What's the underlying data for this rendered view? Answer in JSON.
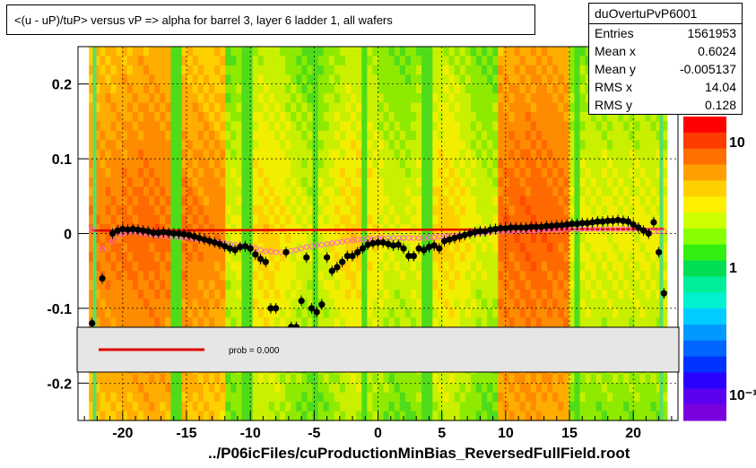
{
  "title": "<(u - uP)/tuP>  versus   vP => alpha for barrel 3, layer 6 ladder 1, all wafers",
  "stats": {
    "name": "duOvertuPvP6001",
    "rows": [
      {
        "k": "Entries",
        "v": "1561953"
      },
      {
        "k": "Mean x",
        "v": "0.6024"
      },
      {
        "k": "Mean y",
        "v": "-0.005137"
      },
      {
        "k": "RMS x",
        "v": "14.04"
      },
      {
        "k": "RMS y",
        "v": "0.128"
      }
    ]
  },
  "footer": "../P06icFiles/cuProductionMinBias_ReversedFullField.root",
  "legend_text": "prob = 0.000",
  "colors": {
    "fit_line": "#dd0000",
    "profile_points": "#000000",
    "open_markers": "#ff66cc"
  },
  "chart_data": {
    "type": "heatmap",
    "xlim": [
      -23.5,
      23.5
    ],
    "ylim": [
      -0.25,
      0.25
    ],
    "x_ticks": [
      -20,
      -15,
      -10,
      -5,
      0,
      5,
      10,
      15,
      20
    ],
    "x_tick_labels": [
      "-20",
      "-15",
      "-10",
      "-5",
      "0",
      "5",
      "10",
      "15",
      "20"
    ],
    "y_ticks": [
      -0.2,
      -0.1,
      0,
      0.1,
      0.2
    ],
    "y_tick_labels": [
      "-0.2",
      "-0.1",
      "0",
      "0.1",
      "0.2"
    ],
    "colorbar_scale": "log",
    "colorbar_tick_labels": [
      "10",
      "1",
      "10⁻¹"
    ],
    "grid": true,
    "profile": {
      "x": [
        -22.4,
        -21.6,
        -20.8,
        -20.4,
        -20.0,
        -19.6,
        -19.2,
        -18.8,
        -18.4,
        -18.0,
        -17.6,
        -17.2,
        -16.8,
        -16.4,
        -16.0,
        -15.6,
        -15.2,
        -14.8,
        -14.4,
        -14.0,
        -13.6,
        -13.2,
        -12.8,
        -12.4,
        -12.0,
        -11.6,
        -11.2,
        -10.8,
        -10.4,
        -10.0,
        -9.6,
        -9.2,
        -8.8,
        -8.4,
        -8.0,
        -7.6,
        -7.2,
        -6.8,
        -6.4,
        -6.0,
        -5.6,
        -5.2,
        -4.8,
        -4.4,
        -4.0,
        -3.6,
        -3.2,
        -2.8,
        -2.4,
        -2.0,
        -1.6,
        -1.2,
        -0.8,
        -0.4,
        0.0,
        0.4,
        0.8,
        1.2,
        1.6,
        2.0,
        2.4,
        2.8,
        3.2,
        3.6,
        4.0,
        4.4,
        4.8,
        5.2,
        5.6,
        6.0,
        6.4,
        6.8,
        7.2,
        7.6,
        8.0,
        8.4,
        8.8,
        9.2,
        9.6,
        10.0,
        10.4,
        10.8,
        11.2,
        11.6,
        12.0,
        12.4,
        12.8,
        13.2,
        13.6,
        14.0,
        14.4,
        14.8,
        15.2,
        15.6,
        16.0,
        16.4,
        16.8,
        17.2,
        17.6,
        18.0,
        18.4,
        18.8,
        19.2,
        19.6,
        20.0,
        20.4,
        20.8,
        21.2,
        21.6,
        22.0,
        22.4
      ],
      "y": [
        -0.12,
        -0.06,
        0.0,
        0.004,
        0.006,
        0.005,
        0.006,
        0.005,
        0.004,
        0.003,
        0.001,
        0.001,
        0.002,
        0.001,
        0.0,
        0.0,
        -0.001,
        -0.002,
        -0.004,
        -0.006,
        -0.008,
        -0.01,
        -0.012,
        -0.014,
        -0.017,
        -0.02,
        -0.022,
        -0.018,
        -0.017,
        -0.02,
        -0.028,
        -0.034,
        -0.038,
        -0.1,
        -0.1,
        -0.132,
        -0.025,
        -0.125,
        -0.125,
        -0.09,
        -0.032,
        -0.1,
        -0.105,
        -0.095,
        -0.032,
        -0.05,
        -0.045,
        -0.038,
        -0.03,
        -0.03,
        -0.025,
        -0.02,
        -0.015,
        -0.013,
        -0.012,
        -0.012,
        -0.014,
        -0.016,
        -0.015,
        -0.02,
        -0.03,
        -0.03,
        -0.02,
        -0.022,
        -0.018,
        -0.016,
        -0.02,
        -0.01,
        -0.008,
        -0.006,
        -0.004,
        -0.002,
        0.0,
        0.002,
        0.003,
        0.003,
        0.005,
        0.006,
        0.007,
        0.007,
        0.008,
        0.008,
        0.008,
        0.008,
        0.009,
        0.009,
        0.009,
        0.01,
        0.01,
        0.011,
        0.011,
        0.012,
        0.013,
        0.013,
        0.014,
        0.014,
        0.015,
        0.016,
        0.016,
        0.017,
        0.017,
        0.018,
        0.017,
        0.016,
        0.012,
        0.008,
        0.004,
        0.0,
        0.015,
        -0.025,
        -0.08
      ],
      "open_y": [
        0.006,
        -0.02,
        -0.01,
        -0.004,
        0.0,
        0.002,
        0.002,
        0.001,
        0.0,
        -0.001,
        -0.002,
        -0.003,
        -0.003,
        -0.004,
        -0.004,
        -0.005,
        -0.005,
        -0.006,
        -0.007,
        -0.008,
        -0.009,
        -0.01,
        -0.011,
        -0.012,
        -0.013,
        -0.014,
        -0.015,
        -0.016,
        -0.017,
        -0.018,
        -0.02,
        -0.022,
        -0.024,
        -0.024,
        -0.025,
        -0.025,
        -0.024,
        -0.023,
        -0.022,
        -0.02,
        -0.018,
        -0.017,
        -0.016,
        -0.015,
        -0.014,
        -0.013,
        -0.012,
        -0.011,
        -0.01,
        -0.009,
        -0.008,
        -0.008,
        -0.007,
        -0.007,
        -0.006,
        -0.006,
        -0.006,
        -0.006,
        -0.006,
        -0.006,
        -0.006,
        -0.006,
        -0.006,
        -0.006,
        -0.005,
        -0.005,
        -0.004,
        -0.004,
        -0.003,
        -0.003,
        -0.002,
        -0.002,
        -0.001,
        0.0,
        0.001,
        0.001,
        0.002,
        0.002,
        0.003,
        0.003,
        0.003,
        0.004,
        0.004,
        0.004,
        0.004,
        0.004,
        0.005,
        0.005,
        0.005,
        0.005,
        0.005,
        0.006,
        0.006,
        0.006,
        0.006,
        0.006,
        0.006,
        0.006,
        0.006,
        0.006,
        0.006,
        0.006,
        0.006,
        0.006,
        0.006,
        0.006,
        0.005,
        0.004,
        0.003,
        0.003,
        0.003
      ]
    },
    "fit": {
      "x": [
        -22.4,
        22.4
      ],
      "y": [
        0.004,
        0.006
      ]
    }
  }
}
